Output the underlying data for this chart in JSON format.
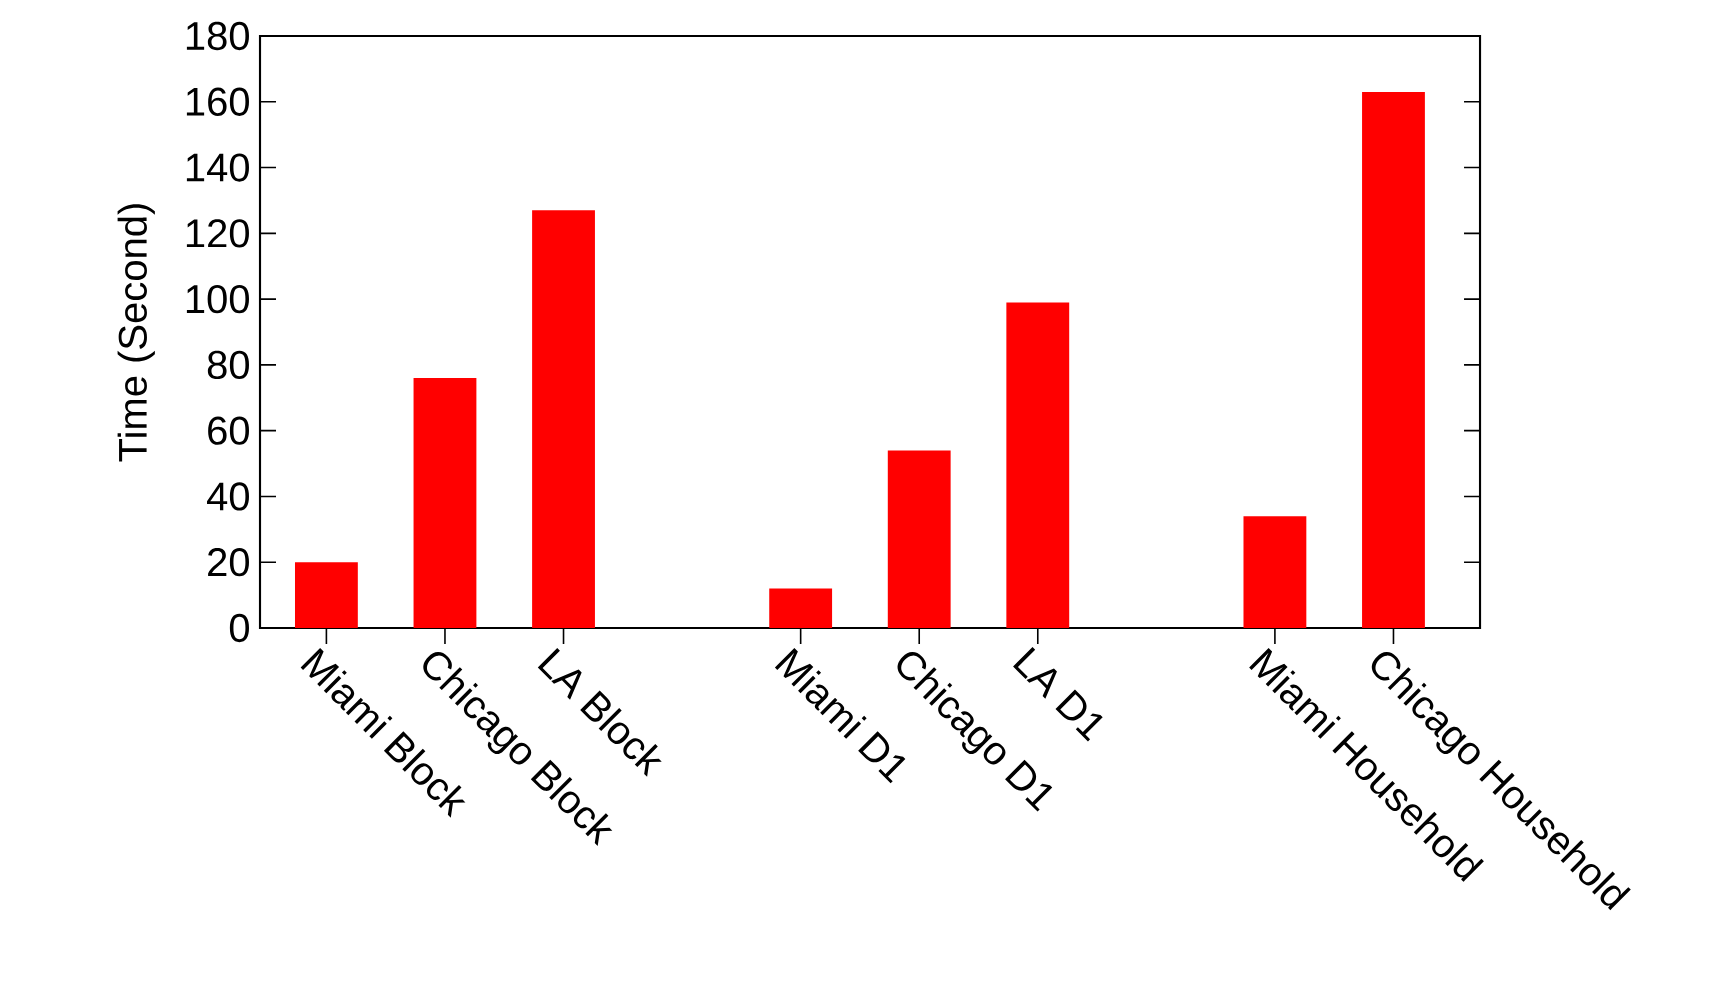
{
  "chart_data": {
    "type": "bar",
    "ylabel": "Time (Second)",
    "categories": [
      "Miami Block",
      "Chicago Block",
      "LA Block",
      null,
      "Miami D1",
      "Chicago D1",
      "LA D1",
      null,
      "Miami Household",
      "Chicago Household"
    ],
    "values": [
      20,
      76,
      127,
      null,
      12,
      54,
      99,
      null,
      34,
      163
    ],
    "color": "#ff0000",
    "ylim": [
      0,
      180
    ],
    "yticks": [
      0,
      20,
      40,
      60,
      80,
      100,
      120,
      140,
      160,
      180
    ],
    "grid": false
  }
}
